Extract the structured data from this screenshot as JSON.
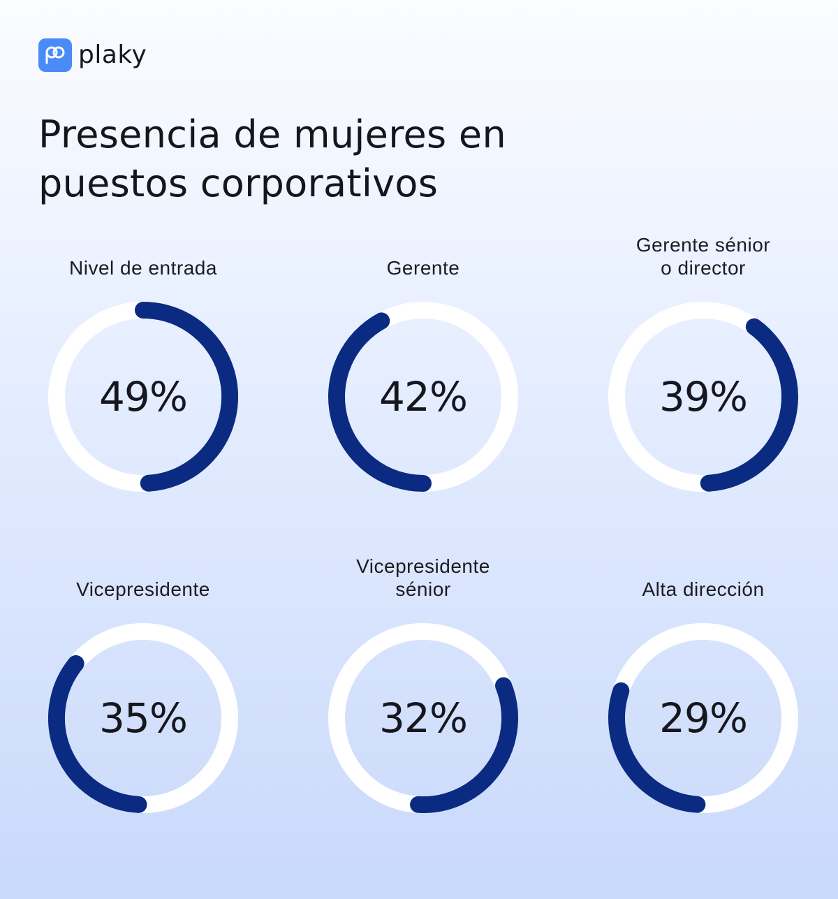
{
  "brand": {
    "name": "plaky",
    "accent": "#4a8cf6"
  },
  "title": {
    "line1": "Presencia de mujeres en",
    "line2": "puestos corporativos"
  },
  "colors": {
    "arc": "#0b2b82",
    "track": "#ffffff"
  },
  "chart_data": {
    "type": "donut",
    "title": "Presencia de mujeres en puestos corporativos",
    "unit": "%",
    "items": [
      {
        "label_lines": [
          "Nivel de entrada"
        ],
        "value": 49,
        "display": "49%",
        "start_deg": 0
      },
      {
        "label_lines": [
          "Gerente"
        ],
        "value": 42,
        "display": "42%",
        "start_deg": 180
      },
      {
        "label_lines": [
          "Gerente sénior",
          "o director"
        ],
        "value": 39,
        "display": "39%",
        "start_deg": 36
      },
      {
        "label_lines": [
          "Vicepresidente"
        ],
        "value": 35,
        "display": "35%",
        "start_deg": 183
      },
      {
        "label_lines": [
          "Vicepresidente",
          "sénior"
        ],
        "value": 32,
        "display": "32%",
        "start_deg": 68
      },
      {
        "label_lines": [
          "Alta dirección"
        ],
        "value": 29,
        "display": "29%",
        "start_deg": 184
      }
    ]
  }
}
